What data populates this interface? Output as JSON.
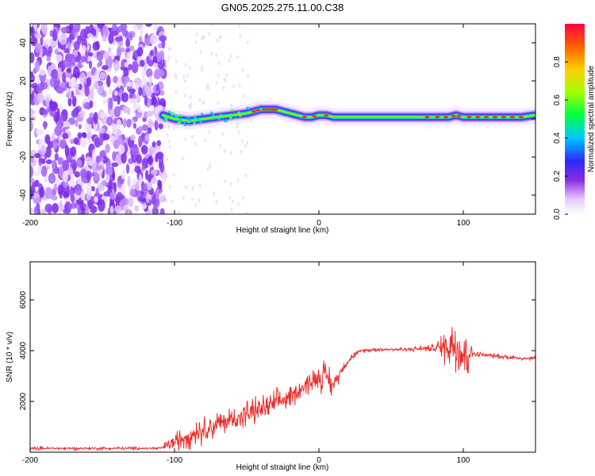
{
  "title": "GN05.2025.275.11.00.C38",
  "chart_data": [
    {
      "type": "heatmap",
      "xlabel": "Height of straight line (km)",
      "ylabel": "Frequency (Hz)",
      "xlim": [
        -200,
        150
      ],
      "ylim": [
        -50,
        50
      ],
      "xticks": [
        -200,
        -100,
        0,
        100
      ],
      "yticks": [
        -40,
        -20,
        0,
        20,
        40
      ],
      "noise_region_end_km": -107,
      "ridge": {
        "x": [
          -108,
          -100,
          -90,
          -80,
          -70,
          -60,
          -50,
          -45,
          -40,
          -35,
          -30,
          -25,
          -20,
          -15,
          -10,
          -5,
          0,
          5,
          10,
          20,
          40,
          60,
          80,
          90,
          95,
          100,
          120,
          140,
          150
        ],
        "freq": [
          2,
          0,
          -1,
          0,
          1,
          2,
          3,
          4,
          5,
          5,
          5,
          4,
          3,
          2,
          1,
          1,
          2,
          2,
          1,
          1,
          1,
          1,
          1,
          1,
          2,
          1,
          1,
          1,
          2
        ]
      },
      "colorbar": {
        "label": "Normalized spectral amplitude",
        "ticks": [
          "0.0",
          "0.2",
          "0.4",
          "0.6",
          "0.8"
        ],
        "range": [
          0,
          1
        ]
      }
    },
    {
      "type": "line",
      "xlabel": "Height of straight line (km)",
      "ylabel": "SNR (10 * v/v)",
      "xlim": [
        -200,
        150
      ],
      "ylim": [
        0,
        7500
      ],
      "xticks": [
        -200,
        -100,
        0,
        100
      ],
      "yticks": [
        2000,
        4000,
        6000
      ],
      "color": "#e8302c",
      "series": [
        {
          "name": "SNR",
          "x": [
            -200,
            -150,
            -110,
            -100,
            -90,
            -80,
            -70,
            -60,
            -50,
            -40,
            -30,
            -20,
            -10,
            0,
            5,
            10,
            15,
            20,
            25,
            30,
            40,
            60,
            80,
            90,
            95,
            100,
            105,
            110,
            120,
            130,
            140,
            150
          ],
          "mean": [
            150,
            150,
            150,
            400,
            700,
            900,
            1100,
            1300,
            1500,
            1700,
            1900,
            2200,
            2600,
            3000,
            3000,
            2600,
            3200,
            3600,
            3850,
            4000,
            4050,
            4050,
            4100,
            4200,
            4400,
            3900,
            3900,
            3850,
            3800,
            3750,
            3700,
            3700
          ],
          "spread": [
            80,
            80,
            80,
            500,
            700,
            700,
            700,
            700,
            700,
            700,
            700,
            600,
            500,
            700,
            900,
            600,
            300,
            200,
            150,
            100,
            100,
            100,
            200,
            1200,
            2000,
            3000,
            400,
            150,
            120,
            120,
            120,
            120
          ]
        }
      ]
    }
  ]
}
